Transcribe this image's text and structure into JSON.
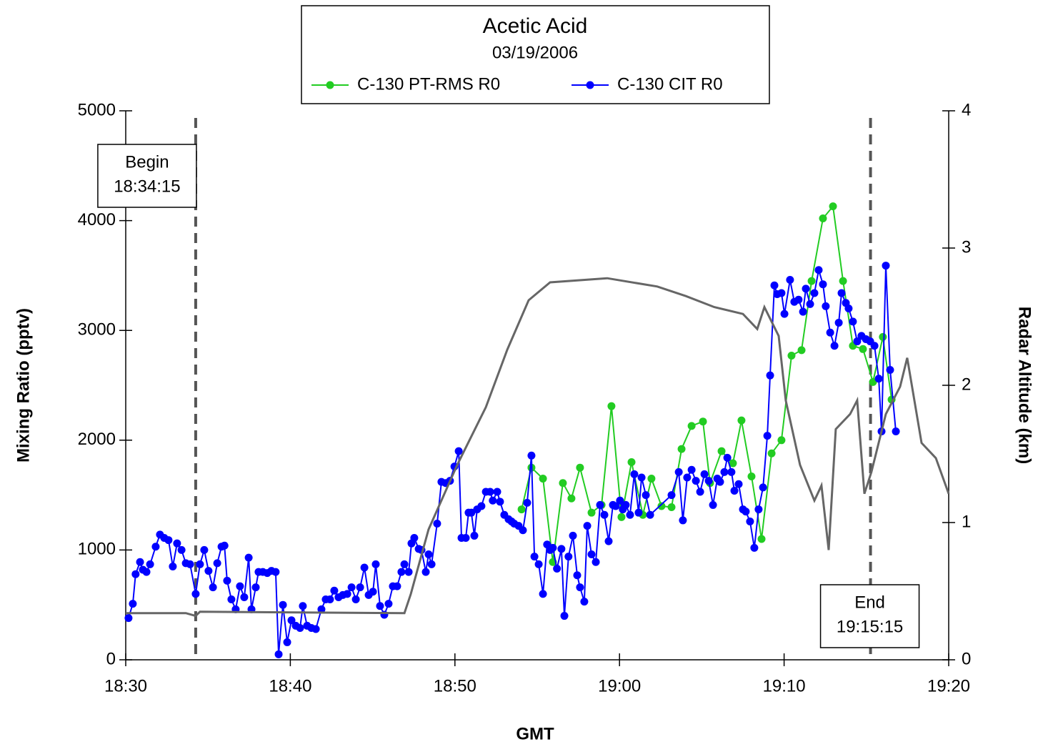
{
  "chart_data": {
    "type": "line",
    "title": "Acetic Acid",
    "subtitle": "03/19/2006",
    "x_label": "GMT",
    "y_label": "Mixing Ratio  (pptv)",
    "y2_label": "Radar Altitude  (km)",
    "xlim": [
      1110,
      1160
    ],
    "xticks": [
      {
        "value": 1110,
        "label": "18:30"
      },
      {
        "value": 1120,
        "label": "18:40"
      },
      {
        "value": 1130,
        "label": "18:50"
      },
      {
        "value": 1140,
        "label": "19:00"
      },
      {
        "value": 1150,
        "label": "19:10"
      },
      {
        "value": 1160,
        "label": "19:20"
      }
    ],
    "ylim": [
      0,
      5000
    ],
    "yticks": [
      0,
      1000,
      2000,
      3000,
      4000,
      5000
    ],
    "y2lim": [
      0,
      4
    ],
    "y2ticks": [
      0,
      1,
      2,
      3,
      4
    ],
    "annotations": [
      {
        "lines": [
          "Begin",
          "18:34:15"
        ],
        "x": 1114.25
      },
      {
        "lines": [
          "End",
          "19:15:15"
        ],
        "x": 1155.25
      }
    ],
    "series": [
      {
        "name": "C-130 PT-RMS R0",
        "color": "#22cc22",
        "x": [
          1134.05,
          1134.65,
          1135.35,
          1135.95,
          1136.56,
          1137.08,
          1137.6,
          1138.3,
          1138.91,
          1139.51,
          1140.12,
          1140.73,
          1141.42,
          1141.94,
          1142.55,
          1143.16,
          1143.77,
          1144.38,
          1145.07,
          1145.5,
          1146.2,
          1146.89,
          1147.41,
          1148.02,
          1148.63,
          1149.24,
          1149.84,
          1150.45,
          1151.06,
          1151.67,
          1152.36,
          1152.97,
          1153.58,
          1154.18,
          1154.79,
          1155.4,
          1156.0,
          1156.53
        ],
        "values": [
          1370,
          1750,
          1650,
          890,
          1610,
          1470,
          1750,
          1340,
          1410,
          2310,
          1300,
          1800,
          1320,
          1650,
          1400,
          1390,
          1920,
          2130,
          2170,
          1610,
          1900,
          1790,
          2180,
          1670,
          1100,
          1880,
          2000,
          2770,
          2820,
          3450,
          4020,
          4130,
          3450,
          2860,
          2830,
          2530,
          2940,
          2370
        ]
      },
      {
        "name": "C-130 CIT R0",
        "color": "#0000ff",
        "x": [
          1110.17,
          1110.43,
          1110.6,
          1110.87,
          1111.04,
          1111.26,
          1111.48,
          1111.82,
          1112.08,
          1112.34,
          1112.6,
          1112.86,
          1113.12,
          1113.39,
          1113.65,
          1113.91,
          1114.25,
          1114.51,
          1114.77,
          1115.03,
          1115.3,
          1115.56,
          1115.82,
          1116.0,
          1116.16,
          1116.42,
          1116.68,
          1116.94,
          1117.2,
          1117.47,
          1117.64,
          1117.9,
          1118.07,
          1118.33,
          1118.6,
          1118.85,
          1119.11,
          1119.29,
          1119.55,
          1119.81,
          1120.07,
          1120.33,
          1120.59,
          1120.76,
          1121.02,
          1121.28,
          1121.55,
          1121.89,
          1122.15,
          1122.41,
          1122.67,
          1122.93,
          1123.19,
          1123.46,
          1123.72,
          1123.98,
          1124.24,
          1124.5,
          1124.76,
          1125.02,
          1125.19,
          1125.45,
          1125.71,
          1125.97,
          1126.23,
          1126.49,
          1126.75,
          1126.93,
          1127.19,
          1127.36,
          1127.53,
          1127.8,
          1127.97,
          1128.23,
          1128.4,
          1128.58,
          1128.92,
          1129.18,
          1129.44,
          1129.7,
          1129.97,
          1130.23,
          1130.4,
          1130.66,
          1130.83,
          1131.0,
          1131.18,
          1131.35,
          1131.61,
          1131.88,
          1132.14,
          1132.3,
          1132.57,
          1132.74,
          1133.0,
          1133.26,
          1133.44,
          1133.6,
          1133.87,
          1134.13,
          1134.39,
          1134.65,
          1134.83,
          1135.09,
          1135.35,
          1135.6,
          1135.78,
          1135.95,
          1136.2,
          1136.47,
          1136.65,
          1136.9,
          1137.17,
          1137.43,
          1137.6,
          1137.86,
          1138.04,
          1138.3,
          1138.56,
          1138.82,
          1139.08,
          1139.34,
          1139.6,
          1139.77,
          1140.03,
          1140.2,
          1140.38,
          1140.64,
          1140.9,
          1141.16,
          1141.34,
          1141.6,
          1141.86,
          1143.16,
          1143.6,
          1143.85,
          1144.11,
          1144.38,
          1144.64,
          1144.9,
          1145.16,
          1145.42,
          1145.68,
          1145.94,
          1146.11,
          1146.37,
          1146.55,
          1146.8,
          1146.98,
          1147.24,
          1147.5,
          1147.67,
          1147.93,
          1148.19,
          1148.45,
          1148.72,
          1148.98,
          1149.15,
          1149.41,
          1149.58,
          1149.84,
          1150.02,
          1150.36,
          1150.62,
          1150.88,
          1151.15,
          1151.32,
          1151.58,
          1151.84,
          1152.1,
          1152.36,
          1152.53,
          1152.8,
          1153.06,
          1153.32,
          1153.49,
          1153.75,
          1153.92,
          1154.18,
          1154.44,
          1154.7,
          1154.97,
          1155.23,
          1155.49,
          1155.75,
          1155.92,
          1156.18,
          1156.44,
          1156.79
        ],
        "values": [
          380,
          510,
          780,
          890,
          820,
          800,
          870,
          1030,
          1140,
          1110,
          1090,
          850,
          1060,
          1000,
          880,
          870,
          600,
          870,
          1000,
          810,
          660,
          880,
          1030,
          1040,
          720,
          550,
          460,
          670,
          570,
          930,
          460,
          660,
          800,
          800,
          790,
          810,
          800,
          50,
          500,
          160,
          360,
          310,
          290,
          490,
          310,
          290,
          280,
          460,
          550,
          550,
          630,
          570,
          590,
          600,
          660,
          550,
          660,
          840,
          590,
          620,
          870,
          490,
          410,
          510,
          670,
          670,
          800,
          870,
          800,
          1060,
          1110,
          1010,
          1000,
          800,
          960,
          870,
          1240,
          1620,
          1610,
          1630,
          1760,
          1900,
          1110,
          1110,
          1340,
          1340,
          1130,
          1370,
          1400,
          1530,
          1530,
          1450,
          1530,
          1440,
          1320,
          1280,
          1260,
          1240,
          1220,
          1180,
          1430,
          1860,
          940,
          870,
          600,
          1050,
          1000,
          1020,
          830,
          1010,
          400,
          940,
          1130,
          770,
          660,
          530,
          1220,
          960,
          890,
          1410,
          1320,
          1080,
          1410,
          1400,
          1450,
          1370,
          1410,
          1320,
          1690,
          1340,
          1660,
          1500,
          1320,
          1500,
          1710,
          1270,
          1660,
          1730,
          1630,
          1530,
          1690,
          1630,
          1410,
          1650,
          1620,
          1710,
          1840,
          1710,
          1540,
          1600,
          1370,
          1350,
          1260,
          1020,
          1370,
          1570,
          2040,
          2590,
          3410,
          3330,
          3340,
          3150,
          3460,
          3260,
          3280,
          3170,
          3380,
          3240,
          3340,
          3550,
          3420,
          3220,
          2980,
          2860,
          3070,
          3340,
          3250,
          3200,
          3080,
          2900,
          2950,
          2920,
          2900,
          2860,
          2560,
          2080,
          3590,
          2640,
          2080
        ]
      },
      {
        "color": "#666666",
        "axis": "y2",
        "x": [
          1110,
          1113.65,
          1114.25,
          1114.51,
          1126.93,
          1127.32,
          1128.4,
          1130.14,
          1131.88,
          1133.18,
          1134.48,
          1135.78,
          1139.25,
          1142.29,
          1144.03,
          1145.76,
          1147.5,
          1148.37,
          1148.8,
          1149.67,
          1150.1,
          1150.97,
          1151.84,
          1152.27,
          1152.71,
          1153.14,
          1154.01,
          1154.44,
          1154.88,
          1155.31,
          1156.18,
          1157.05,
          1157.48,
          1158.35,
          1159.22,
          1160
        ],
        "values": [
          0.34,
          0.34,
          0.32,
          0.35,
          0.34,
          0.48,
          0.95,
          1.42,
          1.84,
          2.26,
          2.62,
          2.75,
          2.78,
          2.72,
          2.65,
          2.57,
          2.52,
          2.41,
          2.57,
          2.36,
          1.89,
          1.42,
          1.16,
          1.27,
          0.8,
          1.68,
          1.79,
          1.89,
          1.21,
          1.37,
          1.79,
          1.99,
          2.2,
          1.58,
          1.47,
          1.21
        ]
      }
    ]
  }
}
